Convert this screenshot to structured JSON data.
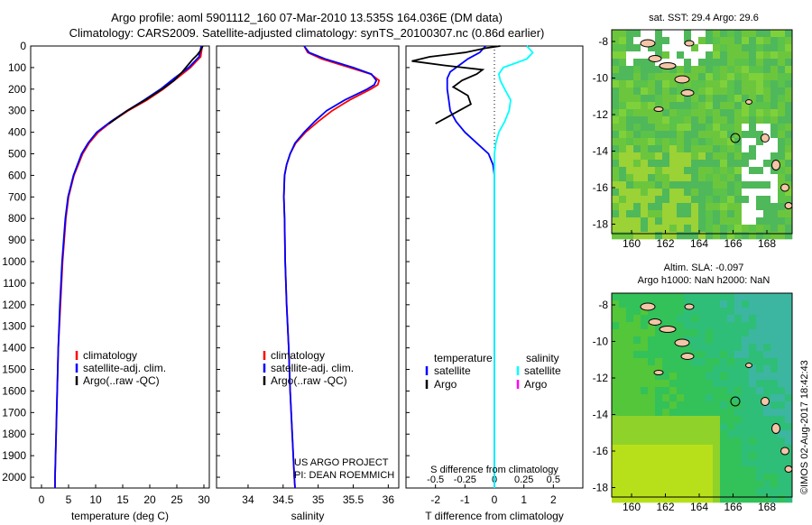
{
  "header": {
    "line1": "Argo profile: aoml 5901112_160 07-Mar-2010 13.535S 164.036E (DM data)",
    "line2": "Climatology: CARS2009. Satellite-adjusted climatology: synTS_20100307.nc (0.86d earlier)"
  },
  "colors": {
    "climatology": "#ff0000",
    "satellite": "#0000ff",
    "argo": "#000000",
    "satellite_s": "#00ffff",
    "argo_s": "#ff00ff"
  },
  "chart_data": [
    {
      "type": "line",
      "xlabel": "temperature (deg C)",
      "xlim": [
        -2,
        31
      ],
      "ylim": [
        2050,
        0
      ],
      "xticks": [
        0,
        5,
        10,
        15,
        20,
        25,
        30
      ],
      "yticks": [
        0,
        100,
        200,
        300,
        400,
        500,
        600,
        700,
        800,
        900,
        1000,
        1100,
        1200,
        1300,
        1400,
        1500,
        1600,
        1700,
        1800,
        1900,
        2000
      ],
      "legend": {
        "position": "lower-center",
        "entries": [
          "climatology",
          "satellite-adj. clim.",
          "Argo(..raw -QC)"
        ]
      },
      "series": [
        {
          "name": "climatology",
          "color": "#ff0000",
          "y": [
            0,
            50,
            100,
            150,
            200,
            250,
            300,
            350,
            400,
            450,
            500,
            600,
            700,
            800,
            900,
            1000,
            1200,
            1400,
            1600,
            1800,
            2000,
            2050
          ],
          "x": [
            29.7,
            29.4,
            27.5,
            25.0,
            22.5,
            19.5,
            16.0,
            13.0,
            10.5,
            8.8,
            7.6,
            6.0,
            5.0,
            4.5,
            4.2,
            3.9,
            3.5,
            3.1,
            2.9,
            2.7,
            2.5,
            2.5
          ]
        },
        {
          "name": "satellite-adj. clim.",
          "color": "#0000ff",
          "y": [
            0,
            50,
            100,
            150,
            200,
            250,
            300,
            350,
            400,
            450,
            500,
            600,
            700,
            800,
            900,
            1000,
            1200,
            1400,
            1600,
            1800,
            2000,
            2050
          ],
          "x": [
            29.5,
            29.1,
            27.2,
            24.5,
            22.0,
            19.0,
            15.8,
            12.8,
            10.2,
            8.6,
            7.4,
            5.9,
            4.9,
            4.4,
            4.1,
            3.8,
            3.4,
            3.1,
            2.9,
            2.7,
            2.5,
            2.5
          ]
        },
        {
          "name": "Argo(..raw -QC)",
          "color": "#000000",
          "y": [
            0,
            20,
            40,
            60,
            90,
            120,
            160,
            200,
            250,
            300,
            360
          ],
          "x": [
            29.8,
            29.4,
            28.8,
            28.0,
            27.0,
            26.0,
            24.5,
            22.3,
            19.2,
            15.8,
            12.5
          ]
        }
      ]
    },
    {
      "type": "line",
      "xlabel": "salinity",
      "xlim": [
        33.55,
        36.15
      ],
      "ylim": [
        2050,
        0
      ],
      "xticks": [
        34,
        34.5,
        35,
        35.5,
        36
      ],
      "legend": {
        "position": "lower-center",
        "entries": [
          "climatology",
          "satellite-adj. clim.",
          "Argo(..raw -QC)"
        ]
      },
      "annotations": [
        "US ARGO PROJECT",
        "PI: DEAN ROEMMICH"
      ],
      "series": [
        {
          "name": "climatology",
          "color": "#ff0000",
          "y": [
            0,
            30,
            60,
            100,
            130,
            160,
            180,
            200,
            250,
            300,
            350,
            400,
            450,
            500,
            550,
            600,
            700,
            800,
            1000,
            1200,
            1400,
            1600,
            1800,
            2000,
            2050
          ],
          "x": [
            34.8,
            34.85,
            35.05,
            35.45,
            35.75,
            35.87,
            35.85,
            35.75,
            35.45,
            35.2,
            35.0,
            34.82,
            34.68,
            34.6,
            34.55,
            34.52,
            34.51,
            34.52,
            34.53,
            34.55,
            34.58,
            34.6,
            34.63,
            34.66,
            34.67
          ]
        },
        {
          "name": "satellite-adj. clim.",
          "color": "#0000ff",
          "y": [
            0,
            30,
            60,
            100,
            130,
            160,
            180,
            200,
            250,
            300,
            350,
            400,
            450,
            500,
            550,
            600,
            700,
            800,
            1000,
            1200,
            1400,
            1600,
            1800,
            2000,
            2050
          ],
          "x": [
            34.8,
            34.87,
            35.1,
            35.5,
            35.76,
            35.83,
            35.8,
            35.7,
            35.38,
            35.12,
            34.95,
            34.8,
            34.67,
            34.6,
            34.55,
            34.52,
            34.51,
            34.52,
            34.53,
            34.55,
            34.58,
            34.6,
            34.63,
            34.66,
            34.67
          ]
        }
      ]
    },
    {
      "type": "line",
      "xlabel": "T difference from climatology",
      "xlabel_top": "S difference from climatology",
      "xlim": [
        -3,
        3
      ],
      "ylim": [
        2050,
        0
      ],
      "xticks": [
        -2,
        -1,
        0,
        1,
        2
      ],
      "xticks_top": [
        "-0.5",
        "-0.25",
        "0",
        "0.25",
        "0.5"
      ],
      "legend": {
        "position": "upper-center",
        "temperature": {
          "title": "temperature",
          "entries": [
            "satellite",
            "Argo"
          ]
        },
        "salinity": {
          "title": "salinity",
          "entries": [
            "satellite",
            "Argo"
          ]
        }
      },
      "series": [
        {
          "name": "satellite",
          "group": "temperature",
          "color": "#0000ff",
          "y": [
            0,
            30,
            60,
            90,
            120,
            150,
            200,
            250,
            300,
            350,
            400,
            450,
            500,
            550,
            600,
            800,
            1000,
            1500,
            2000,
            2050
          ],
          "x": [
            -0.3,
            -0.5,
            -0.9,
            -1.2,
            -1.5,
            -1.6,
            -1.6,
            -1.55,
            -1.5,
            -1.3,
            -1.0,
            -0.6,
            -0.2,
            -0.05,
            0,
            0,
            0,
            0,
            0,
            0
          ]
        },
        {
          "name": "Argo",
          "group": "temperature",
          "color": "#000000",
          "y": [
            0,
            10,
            30,
            50,
            70,
            90,
            110,
            130,
            160,
            190,
            230,
            270,
            300,
            330,
            360
          ],
          "x": [
            0.2,
            -0.3,
            -1.0,
            -2.2,
            -2.8,
            -1.7,
            -0.4,
            -0.6,
            -1.1,
            -1.4,
            -0.9,
            -0.8,
            -1.2,
            -1.6,
            -2.0
          ]
        },
        {
          "name": "satellite",
          "group": "salinity",
          "color": "#00ffff",
          "y": [
            0,
            30,
            60,
            80,
            100,
            130,
            160,
            200,
            250,
            300,
            350,
            400,
            450,
            500,
            600,
            800,
            1000,
            1500,
            2000,
            2050
          ],
          "x": [
            1.1,
            1.3,
            1.1,
            0.7,
            0.3,
            0.15,
            0.2,
            0.35,
            0.55,
            0.5,
            0.35,
            0.15,
            0.05,
            0,
            0,
            0,
            0,
            0,
            0,
            0
          ]
        }
      ]
    }
  ],
  "map_sst": {
    "title": "sat. SST: 29.4  Argo: 29.6",
    "xticks": [
      "160",
      "162",
      "164",
      "166",
      "168"
    ],
    "yticks": [
      "-8",
      "-10",
      "-12",
      "-14",
      "-16",
      "-18"
    ]
  },
  "map_sla": {
    "title1": "Altim. SLA: -0.097",
    "title2": "Argo h1000: NaN  h2000: NaN",
    "xticks": [
      "160",
      "162",
      "164",
      "166",
      "168"
    ],
    "yticks": [
      "-8",
      "-10",
      "-12",
      "-14",
      "-16",
      "-18"
    ]
  },
  "stamp": "©IMOS 02-Aug-2017 18:42:43"
}
